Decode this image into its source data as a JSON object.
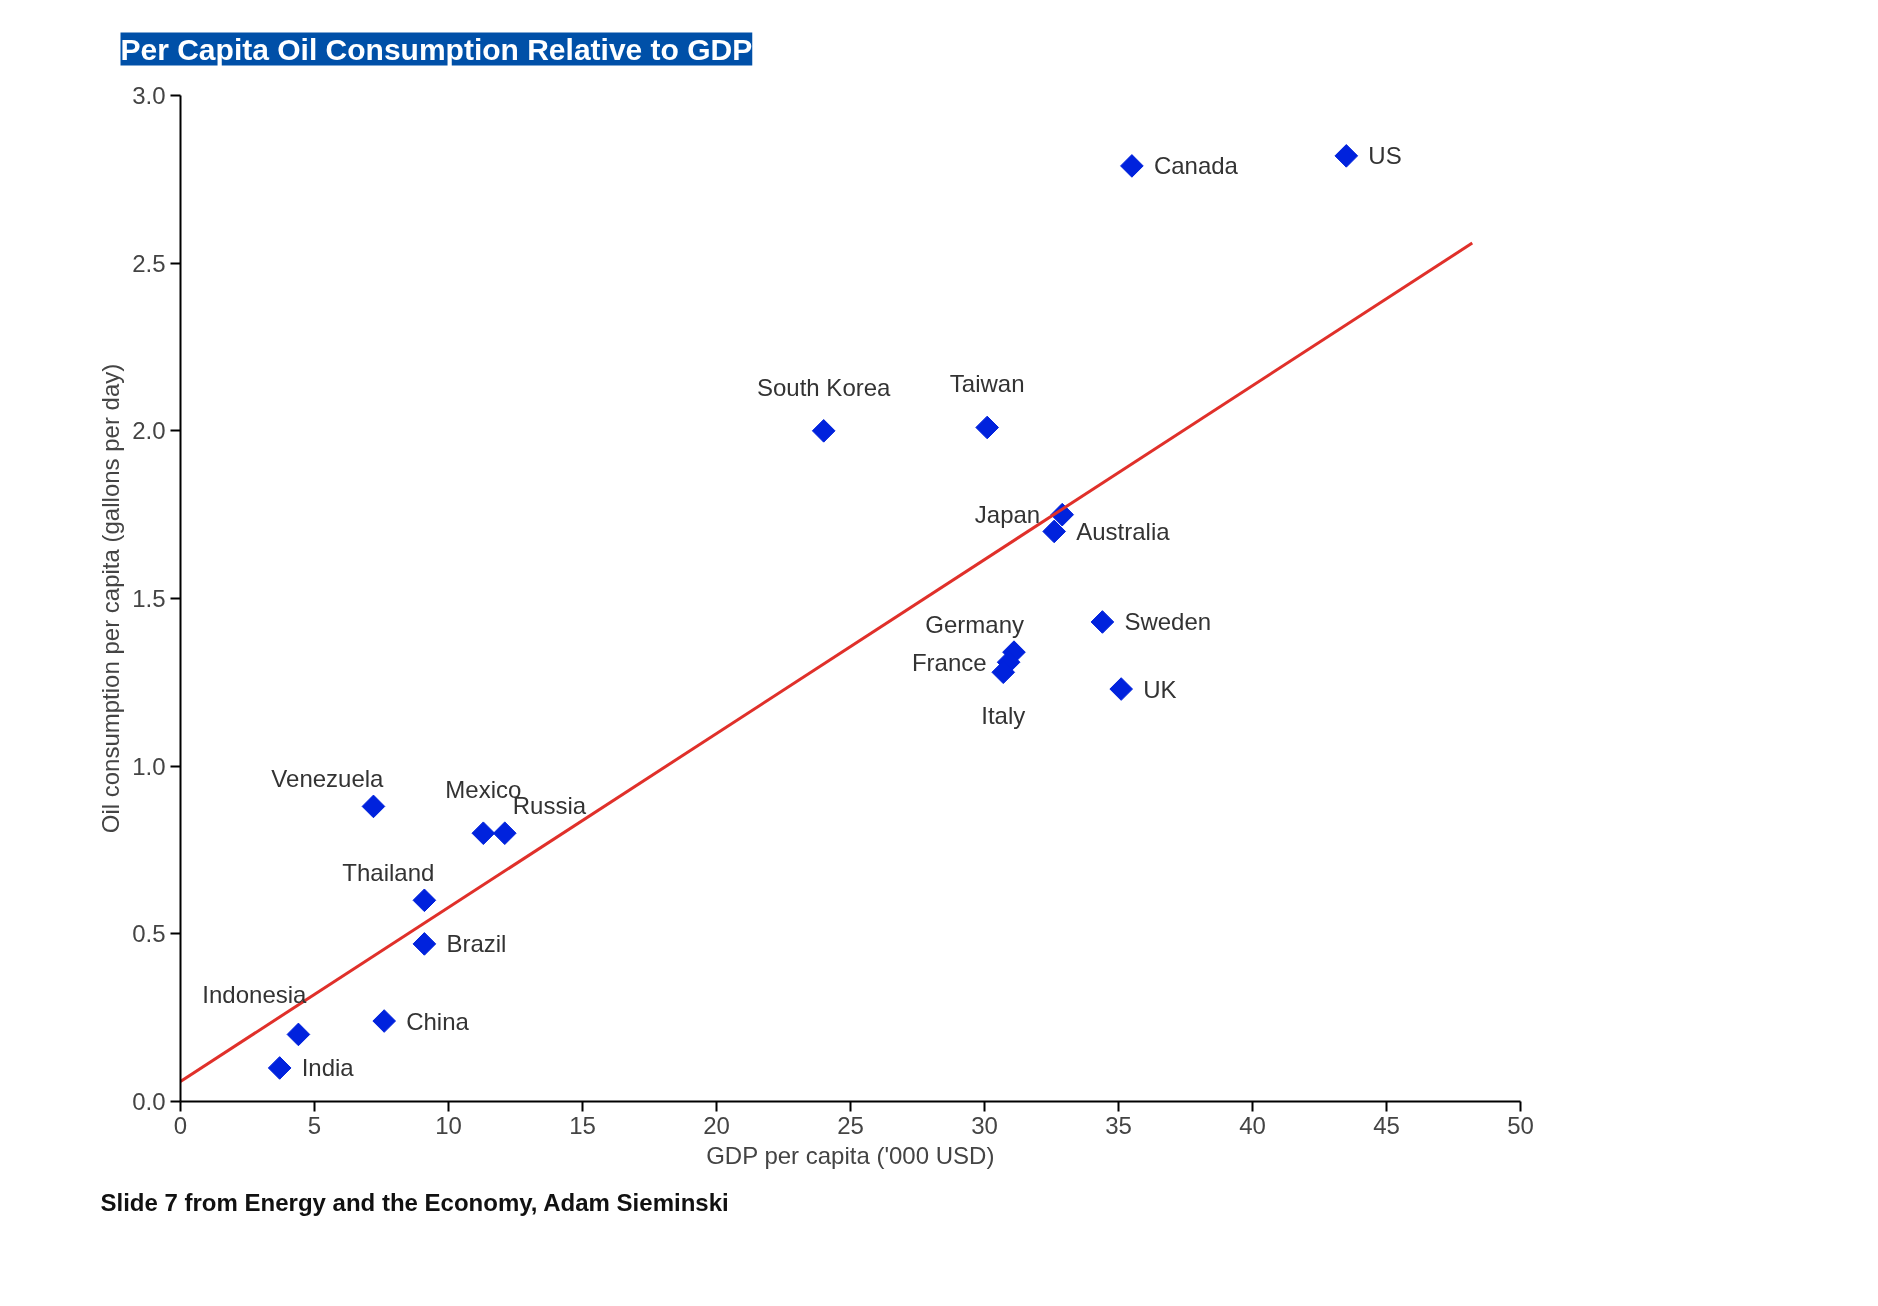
{
  "chart_data": {
    "type": "scatter",
    "title": "Per Capita Oil Consumption Relative to GDP",
    "xlabel": "GDP per capita ('000 USD)",
    "ylabel": "Oil consumption per capita (gallons per day)",
    "xlim": [
      0,
      50
    ],
    "xticks": [
      0,
      5,
      10,
      15,
      20,
      25,
      30,
      35,
      40,
      45,
      50
    ],
    "ylim": [
      0,
      3
    ],
    "yticks": [
      {
        "value": 0,
        "label": "0.0"
      },
      0.5,
      {
        "value": 1,
        "label": "1.0"
      },
      1.5,
      {
        "value": 2,
        "label": "2.0"
      },
      2.5,
      {
        "value": 3,
        "label": "3.0"
      }
    ],
    "grid": false,
    "series": [
      {
        "color": "#0022dd",
        "marker": "diamond",
        "x": [
          43.5,
          35.5,
          24.0,
          30.1,
          32.9,
          32.6,
          34.4,
          31.1,
          30.9,
          30.7,
          35.1,
          7.2,
          11.3,
          12.1,
          9.1,
          9.1,
          7.6,
          4.4,
          3.7
        ],
        "values": [
          2.82,
          2.79,
          2.0,
          2.01,
          1.75,
          1.7,
          1.43,
          1.34,
          1.31,
          1.28,
          1.23,
          0.88,
          0.8,
          0.8,
          0.6,
          0.47,
          0.24,
          0.2,
          0.1
        ]
      },
      {
        "type": "line",
        "color": "#e0302a",
        "x": [
          0,
          48.2
        ],
        "values": [
          0.06,
          2.56
        ]
      }
    ],
    "annotations": [
      {
        "text": "US",
        "x": 43.5,
        "y": 2.82
      },
      {
        "text": "Canada",
        "x": 35.5,
        "y": 2.79
      },
      {
        "text": "South Korea",
        "x": 24.0,
        "y": 2.0
      },
      {
        "text": "Taiwan",
        "x": 30.1,
        "y": 2.01
      },
      {
        "text": "Japan",
        "x": 32.9,
        "y": 1.75
      },
      {
        "text": "Australia",
        "x": 32.6,
        "y": 1.7
      },
      {
        "text": "Sweden",
        "x": 34.4,
        "y": 1.43
      },
      {
        "text": "Germany",
        "x": 31.1,
        "y": 1.34
      },
      {
        "text": "France",
        "x": 30.9,
        "y": 1.31
      },
      {
        "text": "Italy",
        "x": 30.7,
        "y": 1.28
      },
      {
        "text": "UK",
        "x": 35.1,
        "y": 1.23
      },
      {
        "text": "Venezuela",
        "x": 7.2,
        "y": 0.88
      },
      {
        "text": "Mexico",
        "x": 11.3,
        "y": 0.8
      },
      {
        "text": "Russia",
        "x": 12.1,
        "y": 0.8
      },
      {
        "text": "Thailand",
        "x": 9.1,
        "y": 0.6
      },
      {
        "text": "Brazil",
        "x": 9.1,
        "y": 0.47
      },
      {
        "text": "China",
        "x": 7.6,
        "y": 0.24
      },
      {
        "text": "Indonesia",
        "x": 4.4,
        "y": 0.2
      },
      {
        "text": "India",
        "x": 3.7,
        "y": 0.1
      },
      "Slide 7 from Energy and the Economy, Adam Sieminski"
    ]
  }
}
